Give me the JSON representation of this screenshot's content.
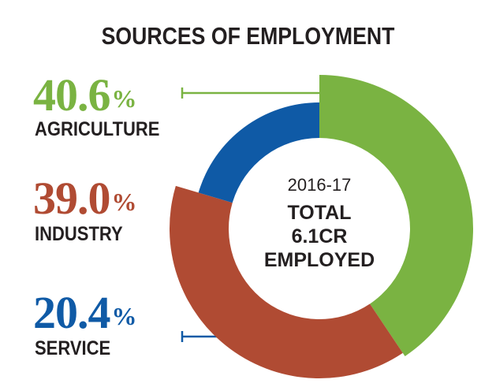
{
  "chart_data": {
    "type": "pie",
    "title": "SOURCES OF EMPLOYMENT",
    "center": {
      "year": "2016-17",
      "line1": "TOTAL",
      "line2": "6.1CR",
      "line3": "EMPLOYED"
    },
    "slices": [
      {
        "name": "AGRICULTURE",
        "value": 40.6,
        "label": "40.6",
        "color": "#7ab342"
      },
      {
        "name": "INDUSTRY",
        "value": 39.0,
        "label": "39.0",
        "color": "#b04b33"
      },
      {
        "name": "SERVICE",
        "value": 20.4,
        "label": "20.4",
        "color": "#0f5aa6"
      }
    ],
    "percent_sign": "%"
  }
}
